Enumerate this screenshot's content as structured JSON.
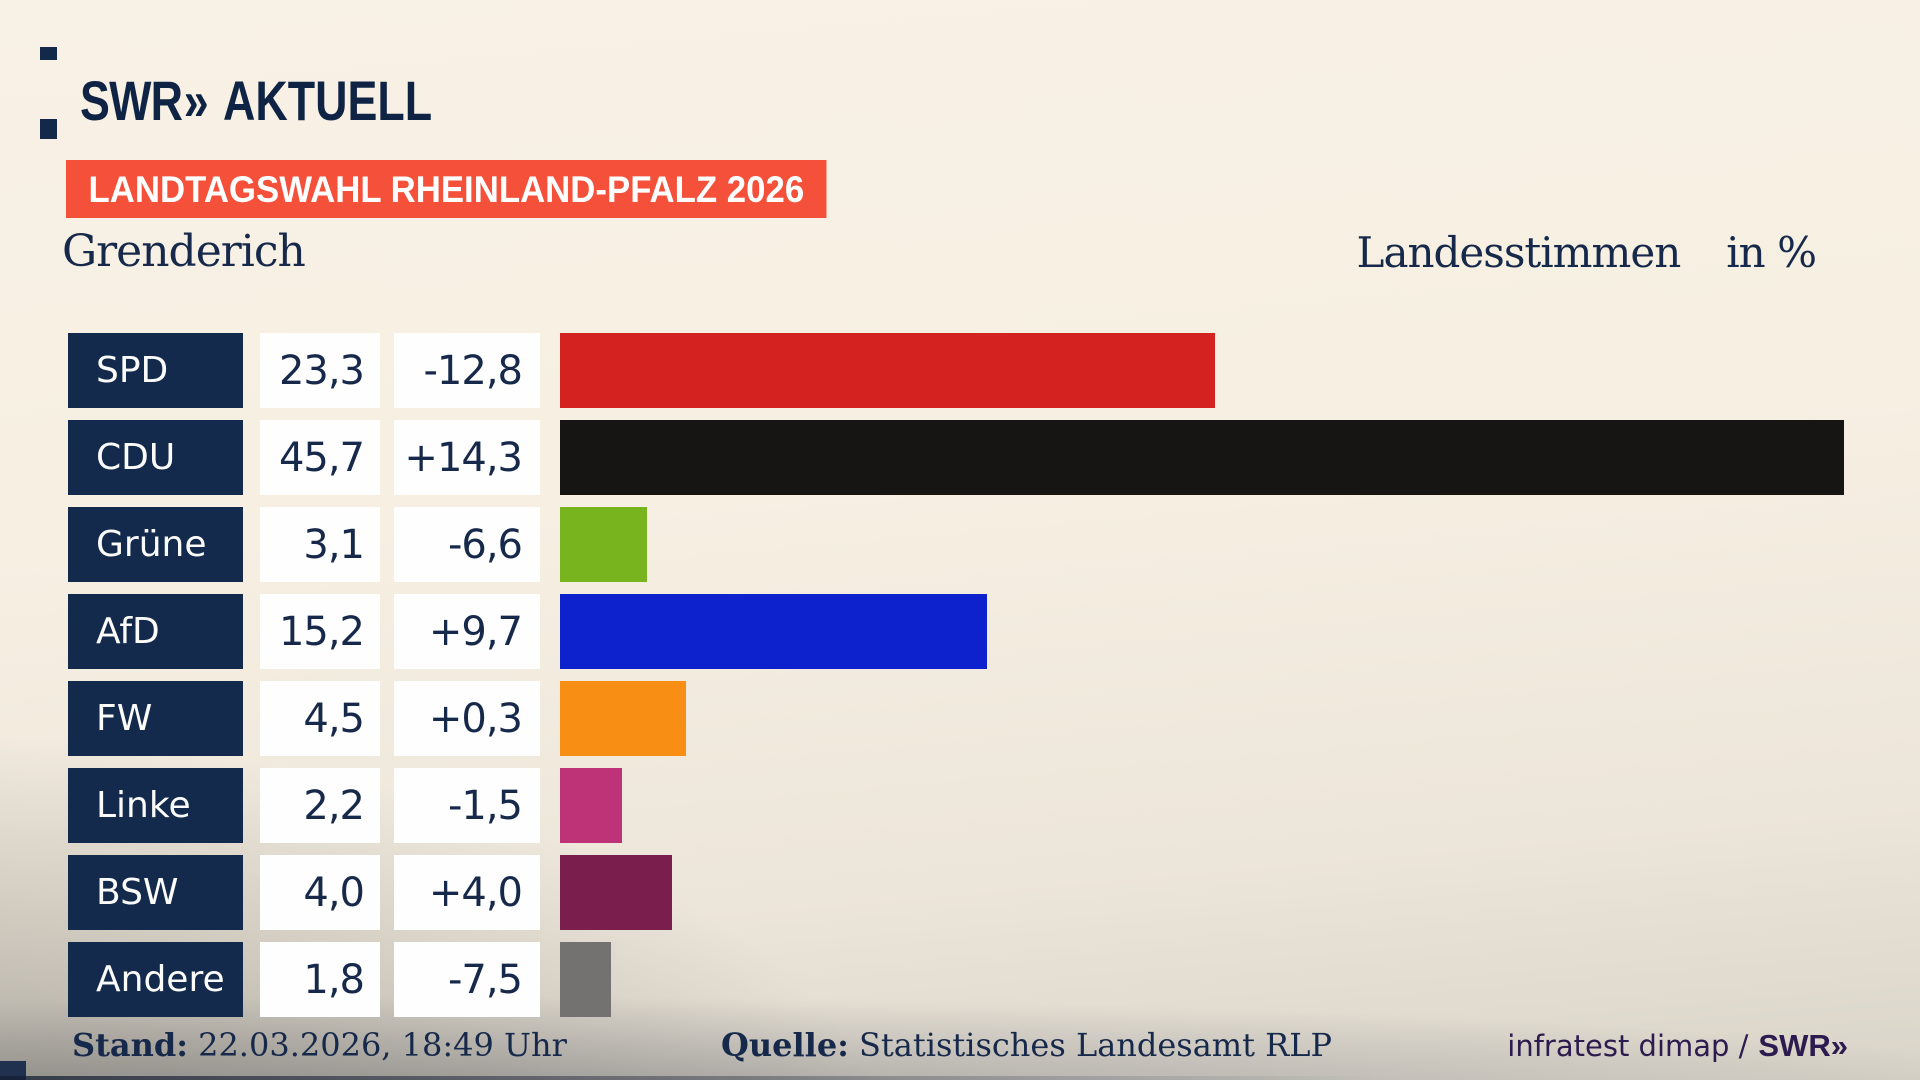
{
  "brand": {
    "swr": "SWR",
    "chevrons": "»",
    "aktuell": "AKTUELL"
  },
  "badge": {
    "label": "LANDTAGSWAHL RHEINLAND-PFALZ 2026",
    "bg_color": "#f4503a",
    "text_color": "#ffffff"
  },
  "header": {
    "municipality": "Grenderich",
    "vote_type": "Landesstimmen",
    "unit": "in %"
  },
  "colors": {
    "navy_box": "#132a4c",
    "text_navy": "#17294b",
    "badge_red": "#f4503a",
    "credit_purple": "#2c1b4e"
  },
  "chart_data": {
    "type": "bar",
    "title": "Grenderich",
    "subtitle": "Landesstimmen in %",
    "categories": [
      "SPD",
      "CDU",
      "Grüne",
      "AfD",
      "FW",
      "Linke",
      "BSW",
      "Andere"
    ],
    "values": [
      23.3,
      45.7,
      3.1,
      15.2,
      4.5,
      2.2,
      4.0,
      1.8
    ],
    "changes": [
      -12.8,
      14.3,
      -6.6,
      9.7,
      0.3,
      -1.5,
      4.0,
      -7.5
    ],
    "value_labels": [
      "23,3",
      "45,7",
      "3,1",
      "15,2",
      "4,5",
      "2,2",
      "4,0",
      "1,8"
    ],
    "change_labels": [
      "-12,8",
      "+14,3",
      "-6,6",
      "+9,7",
      "+0,3",
      "-1,5",
      "+4,0",
      "-7,5"
    ],
    "bar_colors": [
      "#d42221",
      "#171513",
      "#78b41e",
      "#0d22cc",
      "#f98e15",
      "#be3377",
      "#7a1f4d",
      "#747270"
    ],
    "xlabel": "in %",
    "ylabel": "",
    "xlim": [
      0,
      46
    ],
    "grid": false,
    "legend": false,
    "orientation": "horizontal"
  },
  "footer": {
    "stand_label": "Stand:",
    "stand_value": "22.03.2026, 18:49 Uhr",
    "quelle_label": "Quelle:",
    "quelle_value": "Statistisches Landesamt RLP",
    "credit": "infratest dimap /",
    "credit_brand": "SWR",
    "credit_chevrons": "»"
  }
}
